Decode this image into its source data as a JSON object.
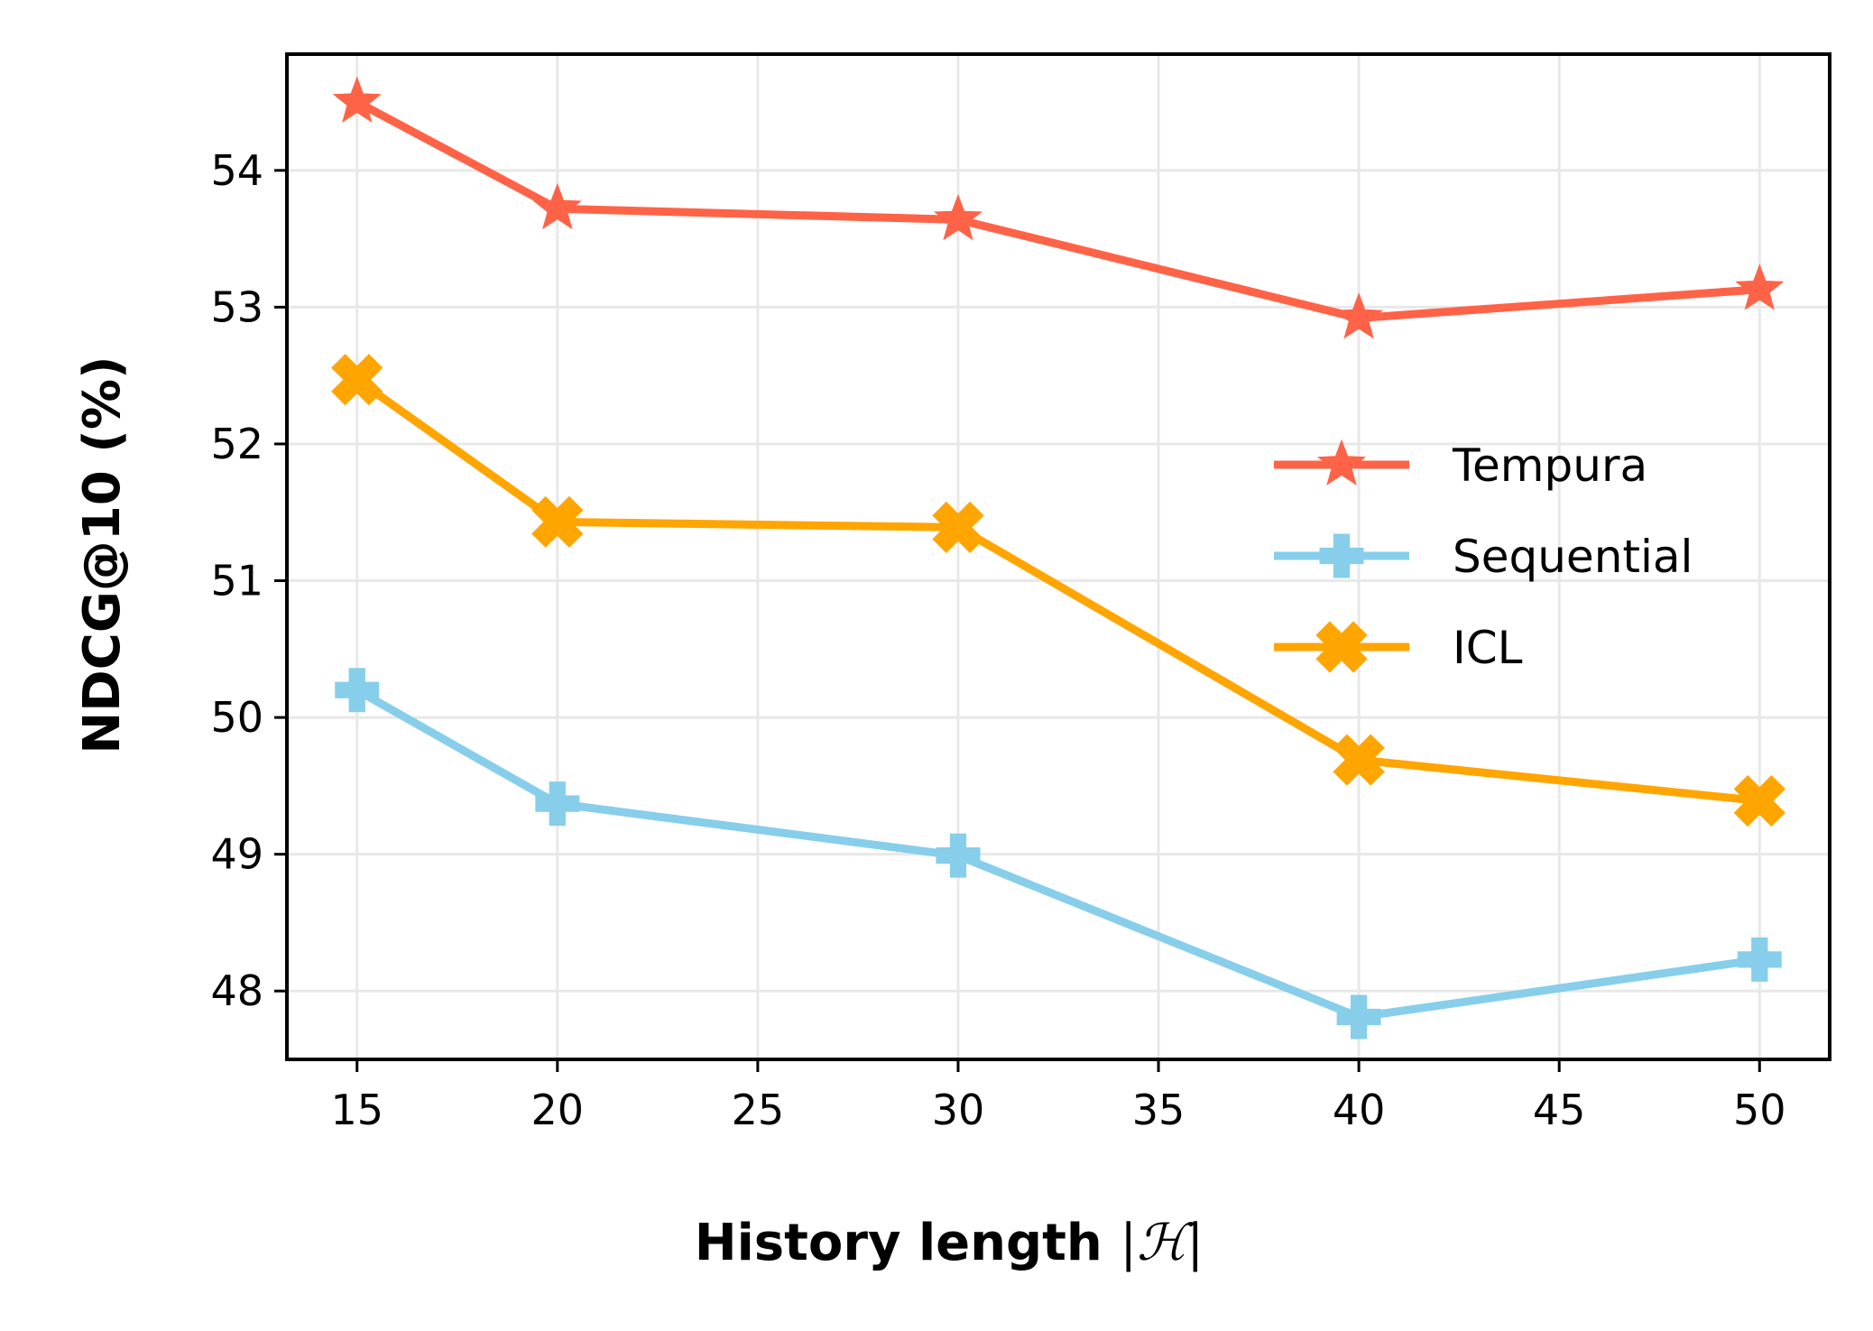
{
  "chart_data": {
    "type": "line",
    "xlabel_text": "History length ",
    "xlabel_math": "|ℋ|",
    "ylabel": "NDCG@10 (%)",
    "xlim": [
      13.25,
      51.75
    ],
    "ylim": [
      47.5,
      54.85
    ],
    "xticks": [
      "15",
      "20",
      "25",
      "30",
      "35",
      "40",
      "45",
      "50"
    ],
    "yticks": [
      "48",
      "49",
      "50",
      "51",
      "52",
      "53",
      "54"
    ],
    "grid": true,
    "legend_position": "center-right",
    "x": [
      15,
      20,
      30,
      40,
      50
    ],
    "series": [
      {
        "name": "Tempura",
        "color": "#FF6347",
        "marker": "star-icon",
        "values": [
          54.5,
          53.72,
          53.64,
          52.92,
          53.13
        ]
      },
      {
        "name": "Sequential",
        "color": "#87CEEB",
        "marker": "plus-icon",
        "values": [
          50.2,
          49.37,
          48.99,
          47.81,
          48.23
        ]
      },
      {
        "name": "ICL",
        "color": "#FFA500",
        "marker": "x-icon",
        "values": [
          52.47,
          51.43,
          51.39,
          49.69,
          49.39
        ]
      }
    ]
  }
}
